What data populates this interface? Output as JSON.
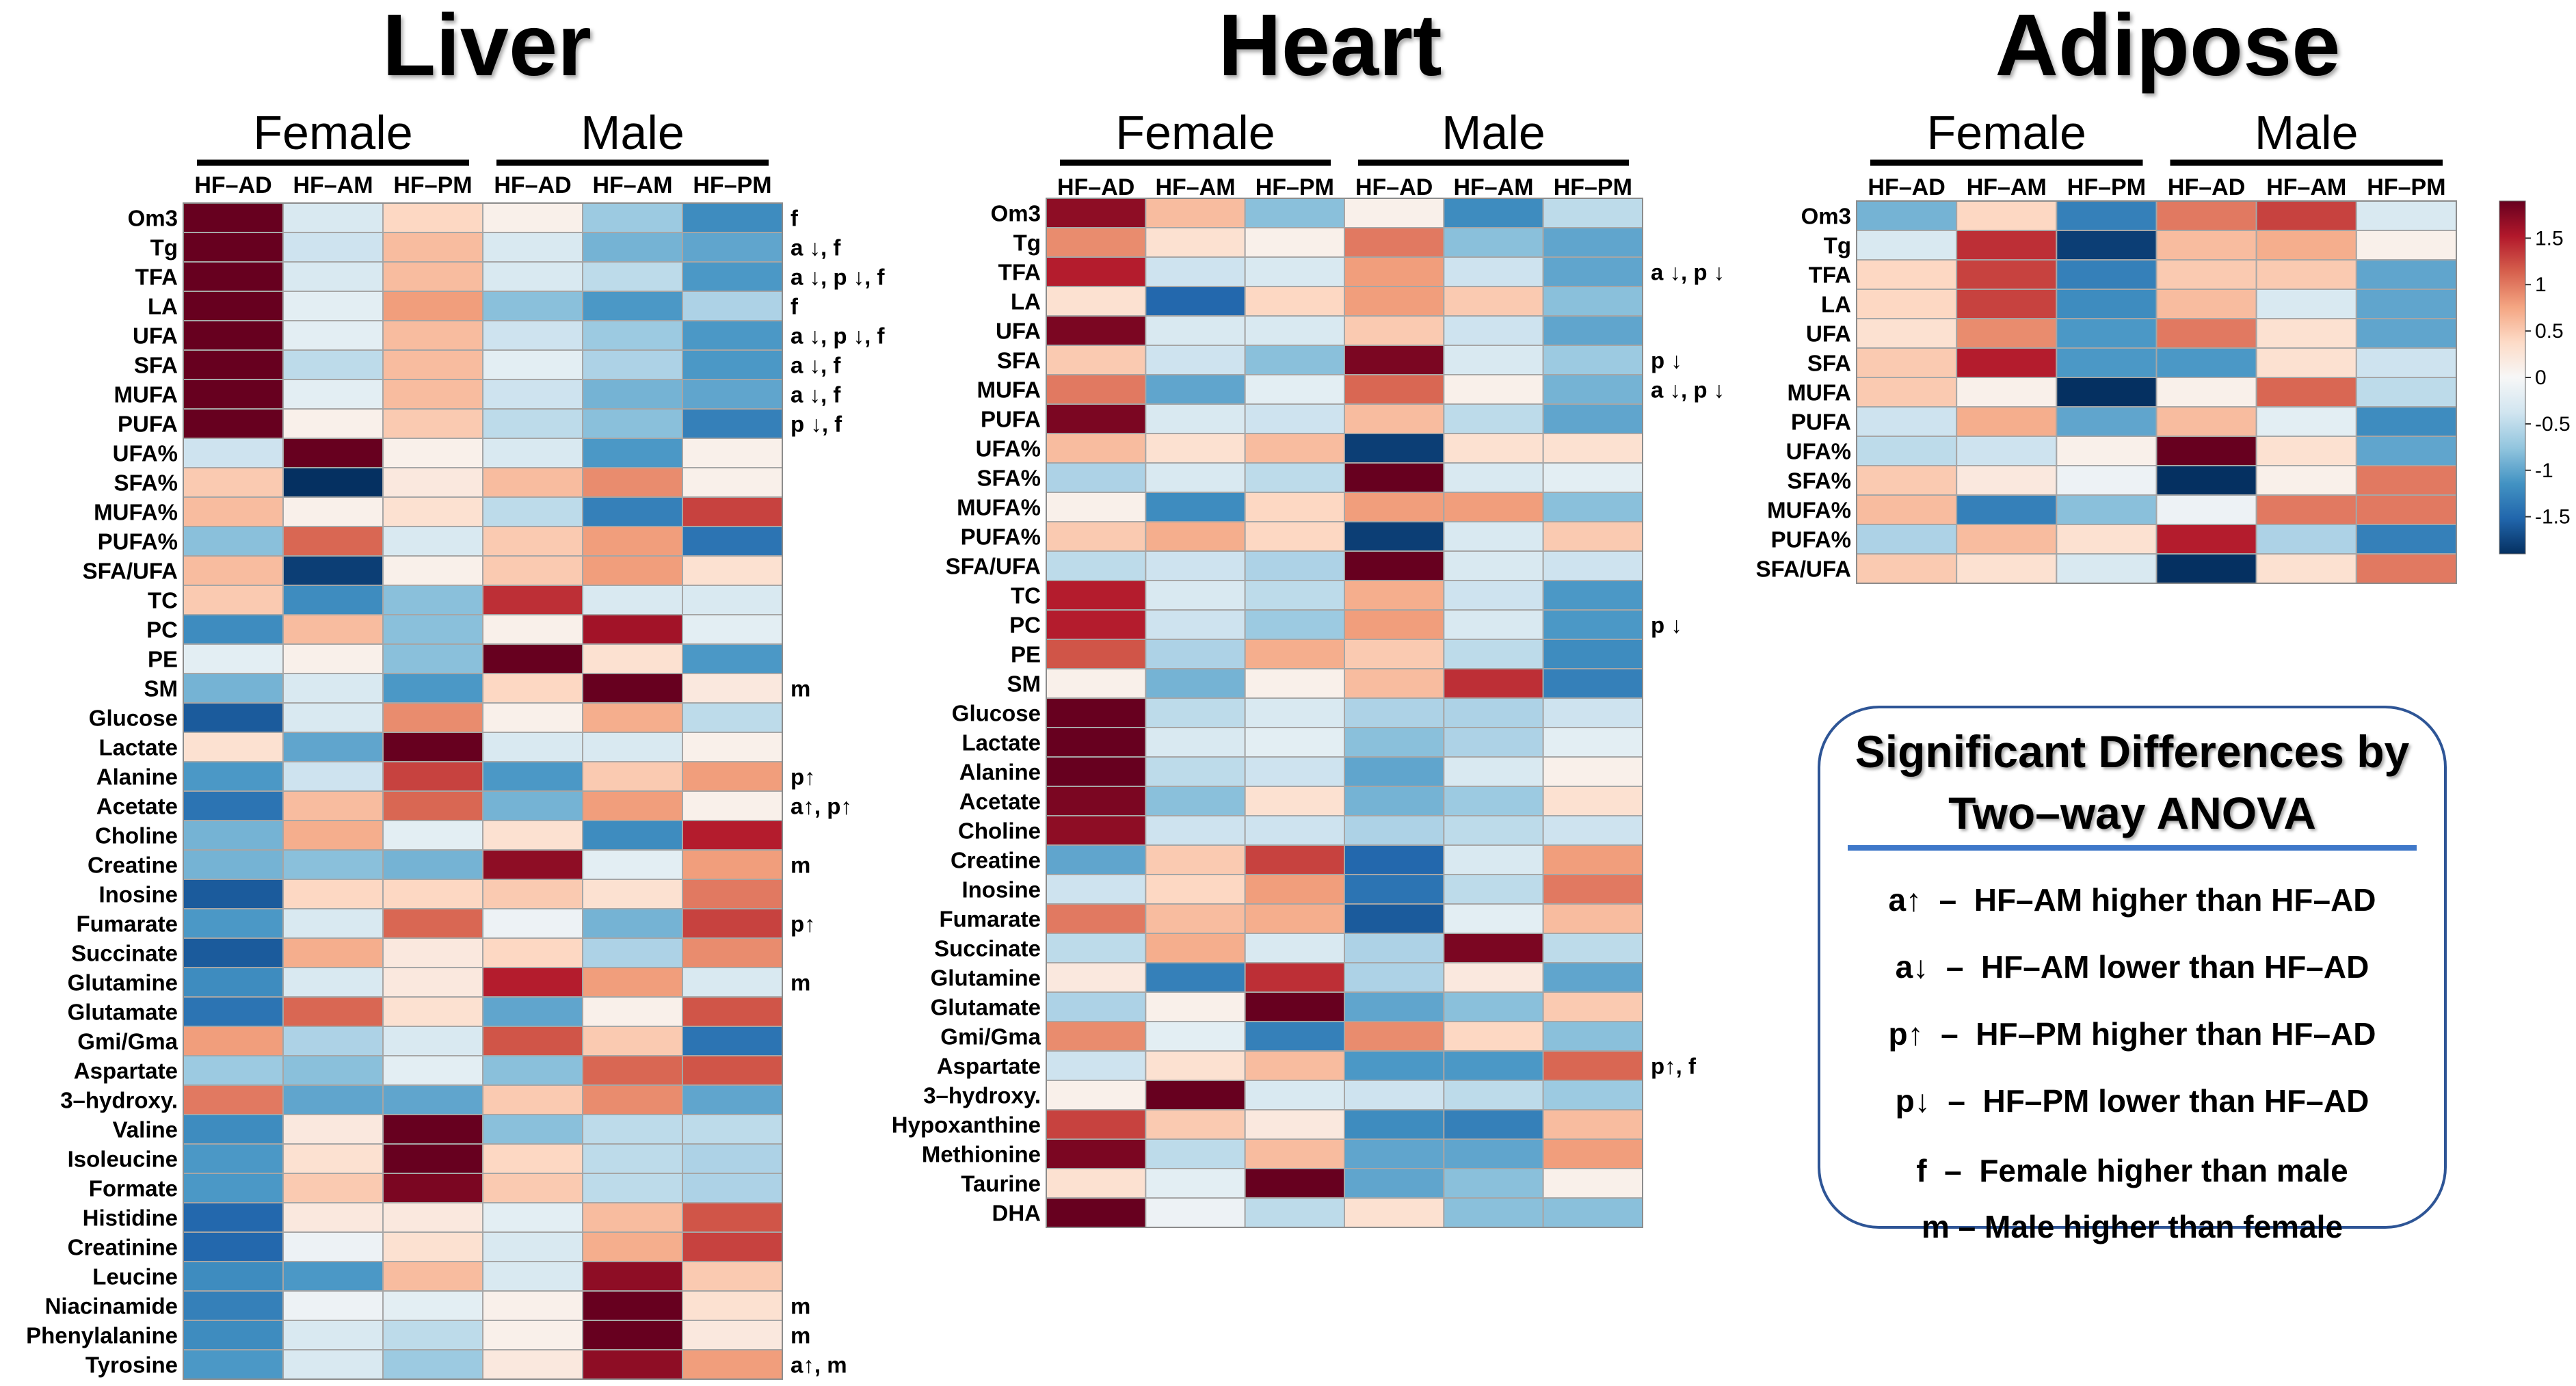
{
  "chart_data": [
    {
      "type": "heatmap",
      "title": "Liver",
      "group_labels": [
        "Female",
        "Male"
      ],
      "columns": [
        "HF–AD",
        "HF–AM",
        "HF–PM",
        "HF–AD",
        "HF–AM",
        "HF–PM"
      ],
      "rows": [
        "Om3",
        "Tg",
        "TFA",
        "LA",
        "UFA",
        "SFA",
        "MUFA",
        "PUFA",
        "UFA%",
        "SFA%",
        "MUFA%",
        "PUFA%",
        "SFA/UFA",
        "TC",
        "PC",
        "PE",
        "SM",
        "Glucose",
        "Lactate",
        "Alanine",
        "Acetate",
        "Choline",
        "Creatine",
        "Inosine",
        "Fumarate",
        "Succinate",
        "Glutamine",
        "Glutamate",
        "Gmi/Gma",
        "Aspartate",
        "3–hydroxy.",
        "Valine",
        "Isoleucine",
        "Formate",
        "Histidine",
        "Creatinine",
        "Leucine",
        "Niacinamide",
        "Phenylalanine",
        "Tyrosine"
      ],
      "values": [
        [
          1.9,
          -0.3,
          0.4,
          0.1,
          -0.7,
          -1.2
        ],
        [
          1.9,
          -0.4,
          0.6,
          -0.3,
          -0.9,
          -1.0
        ],
        [
          1.9,
          -0.3,
          0.6,
          -0.3,
          -0.5,
          -1.1
        ],
        [
          1.9,
          -0.2,
          0.8,
          -0.8,
          -1.1,
          -0.6
        ],
        [
          1.9,
          -0.2,
          0.6,
          -0.4,
          -0.7,
          -1.1
        ],
        [
          1.9,
          -0.5,
          0.6,
          -0.2,
          -0.6,
          -1.1
        ],
        [
          1.9,
          -0.2,
          0.6,
          -0.4,
          -0.9,
          -1.0
        ],
        [
          1.9,
          0.1,
          0.5,
          -0.5,
          -0.8,
          -1.3
        ],
        [
          -0.4,
          1.9,
          0.1,
          -0.3,
          -1.1,
          0.1
        ],
        [
          0.5,
          -1.9,
          0.2,
          0.6,
          0.9,
          0.1
        ],
        [
          0.6,
          0.1,
          0.3,
          -0.5,
          -1.3,
          1.3
        ],
        [
          -0.8,
          1.1,
          -0.3,
          0.5,
          0.8,
          -1.4
        ],
        [
          0.6,
          -1.8,
          0.1,
          0.5,
          0.8,
          0.3
        ],
        [
          0.5,
          -1.2,
          -0.8,
          1.4,
          -0.3,
          -0.3
        ],
        [
          -1.2,
          0.6,
          -0.8,
          0.1,
          1.6,
          -0.2
        ],
        [
          -0.2,
          0.1,
          -0.8,
          1.9,
          0.3,
          -1.1
        ],
        [
          -0.9,
          -0.3,
          -1.1,
          0.4,
          1.9,
          0.2
        ],
        [
          -1.6,
          -0.3,
          0.9,
          0.1,
          0.7,
          -0.5
        ],
        [
          0.3,
          -1.0,
          1.9,
          -0.3,
          -0.3,
          0.1
        ],
        [
          -1.1,
          -0.4,
          1.3,
          -1.1,
          0.5,
          0.8
        ],
        [
          -1.4,
          0.6,
          1.1,
          -0.9,
          0.8,
          0.1
        ],
        [
          -0.9,
          0.7,
          -0.2,
          0.3,
          -1.2,
          1.5
        ],
        [
          -0.9,
          -0.8,
          -0.9,
          1.7,
          -0.2,
          0.8
        ],
        [
          -1.6,
          0.4,
          0.4,
          0.5,
          0.3,
          1.0
        ],
        [
          -1.1,
          -0.3,
          1.1,
          -0.1,
          -0.9,
          1.3
        ],
        [
          -1.6,
          0.7,
          0.2,
          0.4,
          -0.6,
          0.9
        ],
        [
          -1.2,
          -0.3,
          0.2,
          1.5,
          0.8,
          -0.3
        ],
        [
          -1.4,
          1.1,
          0.3,
          -1.0,
          0.1,
          1.2
        ],
        [
          0.8,
          -0.6,
          -0.3,
          1.2,
          0.5,
          -1.4
        ],
        [
          -0.7,
          -0.8,
          -0.2,
          -0.8,
          1.1,
          1.2
        ],
        [
          1.0,
          -1.0,
          -1.0,
          0.5,
          0.9,
          -1.0
        ],
        [
          -1.2,
          0.2,
          1.9,
          -0.8,
          -0.5,
          -0.5
        ],
        [
          -1.1,
          0.3,
          1.9,
          0.4,
          -0.5,
          -0.6
        ],
        [
          -1.1,
          0.5,
          1.8,
          0.5,
          -0.5,
          -0.6
        ],
        [
          -1.5,
          0.2,
          0.2,
          -0.2,
          0.6,
          1.2
        ],
        [
          -1.5,
          -0.1,
          0.3,
          -0.3,
          0.7,
          1.3
        ],
        [
          -1.2,
          -1.1,
          0.6,
          -0.3,
          1.7,
          0.5
        ],
        [
          -1.3,
          -0.1,
          -0.2,
          0.1,
          1.9,
          0.3
        ],
        [
          -1.2,
          -0.3,
          -0.5,
          0.1,
          1.9,
          0.2
        ],
        [
          -1.1,
          -0.3,
          -0.7,
          0.2,
          1.7,
          0.8
        ]
      ],
      "annotations": [
        "f",
        "a ↓, f",
        "a ↓, p ↓, f",
        "f",
        "a ↓, p ↓, f",
        "a ↓,  f",
        "a ↓,  f",
        "p ↓,  f",
        "",
        "",
        "",
        "",
        "",
        "",
        "",
        "",
        "m",
        "",
        "",
        "p↑",
        "a↑, p↑",
        "",
        "m",
        "",
        "p↑",
        "",
        "m",
        "",
        "",
        "",
        "",
        "",
        "",
        "",
        "",
        "",
        "",
        "m",
        "m",
        "a↑, m"
      ]
    },
    {
      "type": "heatmap",
      "title": "Heart",
      "group_labels": [
        "Female",
        "Male"
      ],
      "columns": [
        "HF–AD",
        "HF–AM",
        "HF–PM",
        "HF–AD",
        "HF–AM",
        "HF–PM"
      ],
      "rows": [
        "Om3",
        "Tg",
        "TFA",
        "LA",
        "UFA",
        "SFA",
        "MUFA",
        "PUFA",
        "UFA%",
        "SFA%",
        "MUFA%",
        "PUFA%",
        "SFA/UFA",
        "TC",
        "PC",
        "PE",
        "SM",
        "Glucose",
        "Lactate",
        "Alanine",
        "Acetate",
        "Choline",
        "Creatine",
        "Inosine",
        "Fumarate",
        "Succinate",
        "Glutamine",
        "Glutamate",
        "Gmi/Gma",
        "Aspartate",
        "3–hydroxy.",
        "Hypoxanthine",
        "Methionine",
        "Taurine",
        "DHA"
      ],
      "values": [
        [
          1.7,
          0.6,
          -0.8,
          0.1,
          -1.2,
          -0.5
        ],
        [
          0.9,
          0.3,
          0.1,
          1.0,
          -0.8,
          -1.0
        ],
        [
          1.5,
          -0.4,
          -0.3,
          0.8,
          -0.4,
          -1.0
        ],
        [
          0.3,
          -1.5,
          0.4,
          0.8,
          0.5,
          -0.8
        ],
        [
          1.8,
          -0.3,
          -0.3,
          0.5,
          -0.4,
          -1.0
        ],
        [
          0.5,
          -0.4,
          -0.8,
          1.8,
          -0.3,
          -0.7
        ],
        [
          1.0,
          -1.0,
          -0.2,
          1.1,
          0.1,
          -0.9
        ],
        [
          1.8,
          -0.3,
          -0.4,
          0.6,
          -0.5,
          -1.0
        ],
        [
          0.6,
          0.3,
          0.6,
          -1.8,
          0.3,
          0.3
        ],
        [
          -0.6,
          -0.3,
          -0.5,
          1.9,
          -0.3,
          -0.2
        ],
        [
          0.1,
          -1.2,
          0.4,
          0.8,
          0.8,
          -0.8
        ],
        [
          0.5,
          0.7,
          0.4,
          -1.8,
          -0.3,
          0.5
        ],
        [
          -0.5,
          -0.4,
          -0.6,
          1.9,
          -0.3,
          -0.4
        ],
        [
          1.5,
          -0.3,
          -0.5,
          0.7,
          -0.4,
          -1.1
        ],
        [
          1.5,
          -0.4,
          -0.7,
          0.8,
          -0.3,
          -1.1
        ],
        [
          1.2,
          -0.6,
          0.7,
          0.5,
          -0.5,
          -1.2
        ],
        [
          0.1,
          -0.9,
          0.1,
          0.6,
          1.4,
          -1.3
        ],
        [
          1.9,
          -0.5,
          -0.3,
          -0.6,
          -0.6,
          -0.4
        ],
        [
          1.9,
          -0.3,
          -0.2,
          -0.8,
          -0.6,
          -0.2
        ],
        [
          1.9,
          -0.5,
          -0.4,
          -1.0,
          -0.3,
          0.1
        ],
        [
          1.8,
          -0.8,
          0.3,
          -0.9,
          -0.7,
          0.3
        ],
        [
          1.7,
          -0.4,
          -0.4,
          -0.6,
          -0.5,
          -0.4
        ],
        [
          -1.0,
          0.5,
          1.3,
          -1.5,
          -0.3,
          0.8
        ],
        [
          -0.4,
          0.4,
          0.8,
          -1.4,
          -0.5,
          1.0
        ],
        [
          1.0,
          0.6,
          0.7,
          -1.6,
          -0.2,
          0.6
        ],
        [
          -0.5,
          0.7,
          -0.3,
          -0.6,
          1.8,
          -0.5
        ],
        [
          0.2,
          -1.3,
          1.4,
          -0.6,
          0.2,
          -1.0
        ],
        [
          -0.6,
          0.1,
          1.9,
          -1.0,
          -0.8,
          0.5
        ],
        [
          0.9,
          -0.2,
          -1.3,
          0.9,
          0.4,
          -0.8
        ],
        [
          -0.4,
          0.3,
          0.6,
          -1.1,
          -1.1,
          1.1
        ],
        [
          0.1,
          1.9,
          -0.3,
          -0.4,
          -0.5,
          -0.7
        ],
        [
          1.3,
          0.5,
          0.2,
          -1.2,
          -1.3,
          0.6
        ],
        [
          1.8,
          -0.5,
          0.6,
          -1.0,
          -1.0,
          0.8
        ],
        [
          0.3,
          -0.2,
          1.9,
          -1.0,
          -0.8,
          0.1
        ],
        [
          1.9,
          -0.1,
          -0.5,
          0.3,
          -0.8,
          -0.8
        ]
      ],
      "annotations": [
        "",
        "",
        "a ↓, p ↓",
        "",
        "",
        "p ↓",
        "a ↓, p ↓",
        "",
        "",
        "",
        "",
        "",
        "",
        "",
        "p ↓",
        "",
        "",
        "",
        "",
        "",
        "",
        "",
        "",
        "",
        "",
        "",
        "",
        "",
        "",
        "p↑, f",
        "",
        "",
        "",
        "",
        ""
      ]
    },
    {
      "type": "heatmap",
      "title": "Adipose",
      "group_labels": [
        "Female",
        "Male"
      ],
      "columns": [
        "HF–AD",
        "HF–AM",
        "HF–PM",
        "HF–AD",
        "HF–AM",
        "HF–PM"
      ],
      "rows": [
        "Om3",
        "Tg",
        "TFA",
        "LA",
        "UFA",
        "SFA",
        "MUFA",
        "PUFA",
        "UFA%",
        "SFA%",
        "MUFA%",
        "PUFA%",
        "SFA/UFA"
      ],
      "values": [
        [
          -0.9,
          0.4,
          -1.3,
          1.0,
          1.3,
          -0.3
        ],
        [
          -0.3,
          1.4,
          -1.8,
          0.6,
          0.7,
          0.1
        ],
        [
          0.4,
          1.3,
          -1.3,
          0.5,
          0.5,
          -1.0
        ],
        [
          0.4,
          1.3,
          -1.2,
          0.6,
          -0.3,
          -1.0
        ],
        [
          0.3,
          0.9,
          -1.1,
          1.0,
          0.3,
          -1.0
        ],
        [
          0.5,
          1.5,
          -1.1,
          -1.1,
          0.3,
          -0.4
        ],
        [
          0.5,
          0.1,
          -1.9,
          0.1,
          1.1,
          -0.5
        ],
        [
          -0.4,
          0.7,
          -1.0,
          0.6,
          -0.2,
          -1.2
        ],
        [
          -0.5,
          -0.4,
          0.1,
          1.9,
          0.3,
          -1.0
        ],
        [
          0.5,
          0.2,
          -0.1,
          -1.9,
          0.1,
          1.0
        ],
        [
          0.6,
          -1.3,
          -0.8,
          -0.1,
          1.0,
          1.0
        ],
        [
          -0.6,
          0.6,
          0.3,
          1.5,
          -0.6,
          -1.3
        ],
        [
          0.5,
          0.3,
          -0.3,
          -1.9,
          0.3,
          1.0
        ]
      ],
      "annotations": []
    }
  ],
  "colorbar": {
    "ticks": [
      "1.5",
      "1",
      "0.5",
      "0",
      "-0.5",
      "-1",
      "-1.5"
    ],
    "colors": [
      "#053061",
      "#2166ac",
      "#4393c3",
      "#92c5de",
      "#d1e5f0",
      "#f7f7f7",
      "#fddbc7",
      "#f4a582",
      "#d6604d",
      "#b2182b",
      "#67001f"
    ]
  },
  "legend": {
    "title_line1": "Significant Differences by",
    "title_line2": "Two–way ANOVA",
    "rows": [
      "a↑  –  HF–AM higher than HF–AD",
      "a↓  –  HF–AM lower than HF–AD",
      "p↑  –  HF–PM higher than HF–AD",
      "p↓  –  HF–PM lower than HF–AD",
      "f  –  Female higher than male",
      "m – Male higher than female"
    ]
  }
}
